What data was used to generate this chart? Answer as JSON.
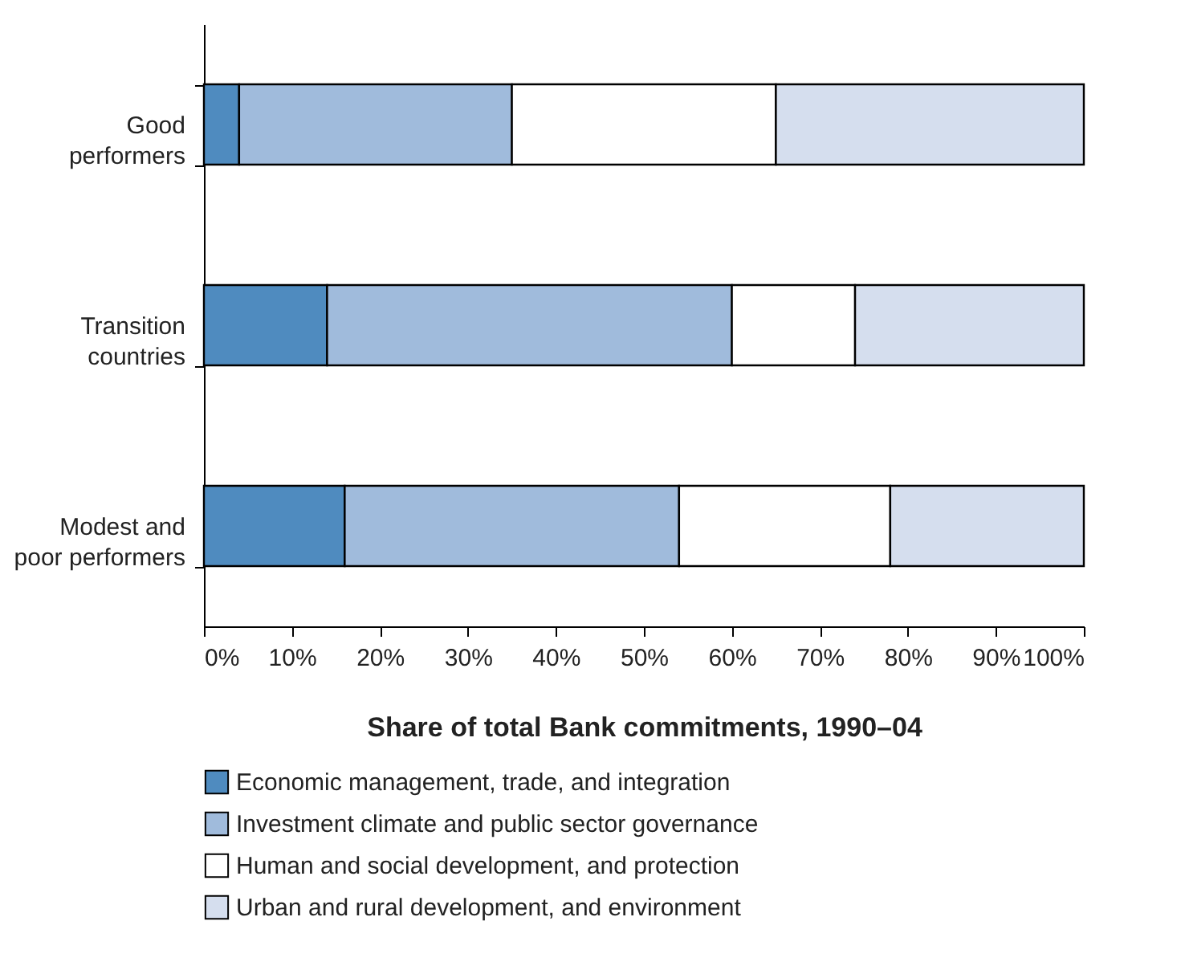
{
  "chart_data": {
    "type": "bar",
    "orientation": "horizontal",
    "stacked": true,
    "categories": [
      "Good performers",
      "Transition countries",
      "Modest and poor performers"
    ],
    "series": [
      {
        "name": "Economic management, trade, and integration",
        "color": "#4f8bbf",
        "values": [
          4,
          14,
          16
        ]
      },
      {
        "name": "Investment climate and public sector governance",
        "color": "#a0bbdc",
        "values": [
          31,
          46,
          38
        ]
      },
      {
        "name": "Human and social development, and protection",
        "color": "#ffffff",
        "values": [
          30,
          14,
          24
        ]
      },
      {
        "name": "Urban and rural development, and environment",
        "color": "#d5deee",
        "values": [
          35,
          26,
          22
        ]
      }
    ],
    "xlabel": "Share of total Bank commitments, 1990–04",
    "xlim": [
      0,
      100
    ],
    "xticks": [
      {
        "value": 0,
        "label": "0%"
      },
      {
        "value": 10,
        "label": "10%"
      },
      {
        "value": 20,
        "label": "20%"
      },
      {
        "value": 30,
        "label": "30%"
      },
      {
        "value": 40,
        "label": "40%"
      },
      {
        "value": 50,
        "label": "50%"
      },
      {
        "value": 60,
        "label": "60%"
      },
      {
        "value": 70,
        "label": "70%"
      },
      {
        "value": 80,
        "label": "80%"
      },
      {
        "value": 90,
        "label": "90%"
      },
      {
        "value": 100,
        "label": "100%"
      }
    ],
    "legend": "bottom",
    "grid": false
  }
}
